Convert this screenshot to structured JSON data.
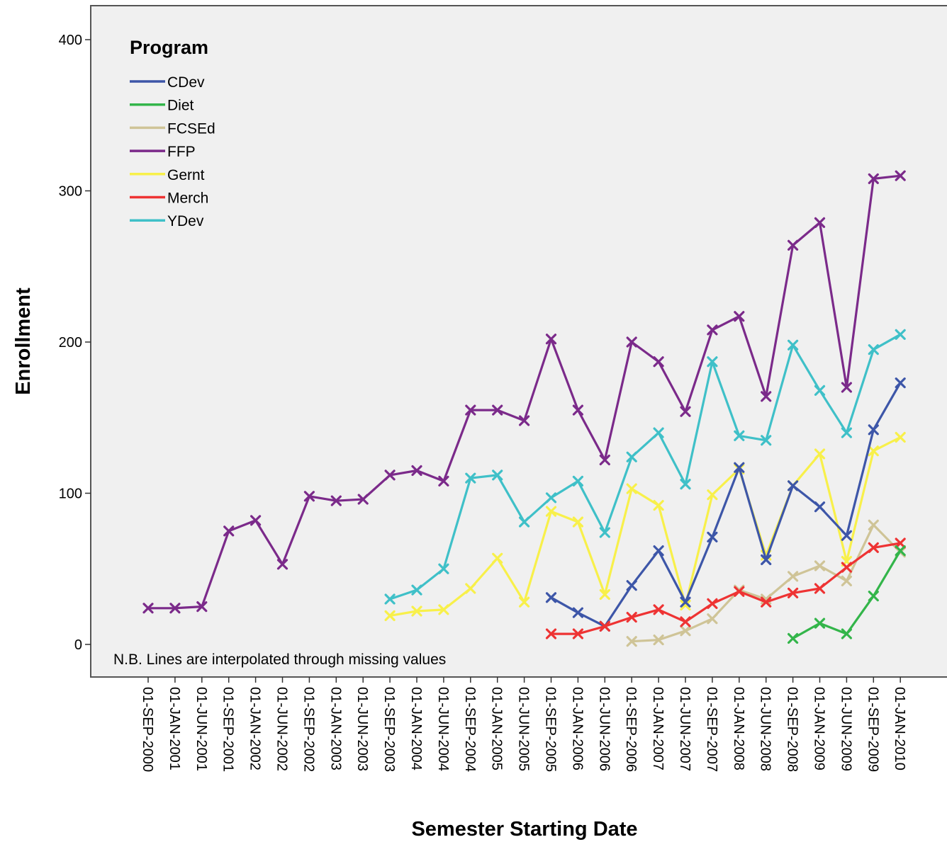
{
  "chart_data": {
    "type": "line",
    "title": "",
    "xlabel": "Semester Starting Date",
    "ylabel": "Enrollment",
    "ylim": [
      -20,
      425
    ],
    "yticks": [
      0,
      100,
      200,
      300,
      400
    ],
    "grid": false,
    "legend_title": "Program",
    "legend_position": "top-left",
    "note": "N.B. Lines are interpolated through missing values",
    "marker": "x",
    "categories": [
      "01-SEP-2000",
      "01-JAN-2001",
      "01-JUN-2001",
      "01-SEP-2001",
      "01-JAN-2002",
      "01-JUN-2002",
      "01-SEP-2002",
      "01-JAN-2003",
      "01-JUN-2003",
      "01-SEP-2003",
      "01-JAN-2004",
      "01-JUN-2004",
      "01-SEP-2004",
      "01-JAN-2005",
      "01-JUN-2005",
      "01-SEP-2005",
      "01-JAN-2006",
      "01-JUN-2006",
      "01-SEP-2006",
      "01-JAN-2007",
      "01-JUN-2007",
      "01-SEP-2007",
      "01-JAN-2008",
      "01-JUN-2008",
      "01-SEP-2008",
      "01-JAN-2009",
      "01-JUN-2009",
      "01-SEP-2009",
      "01-JAN-2010"
    ],
    "series": [
      {
        "name": "FFP",
        "color": "#7b2a8a",
        "values": [
          24,
          24,
          25,
          75,
          82,
          53,
          98,
          95,
          96,
          112,
          115,
          108,
          155,
          155,
          148,
          202,
          155,
          122,
          200,
          187,
          154,
          208,
          217,
          164,
          264,
          279,
          170,
          308,
          310
        ]
      },
      {
        "name": "YDev",
        "color": "#3fc0c8",
        "values": [
          null,
          null,
          null,
          null,
          null,
          null,
          null,
          null,
          null,
          30,
          36,
          50,
          110,
          112,
          81,
          97,
          108,
          74,
          124,
          140,
          106,
          187,
          138,
          135,
          198,
          168,
          140,
          195,
          205
        ]
      },
      {
        "name": "Gernt",
        "color": "#f8f04a",
        "values": [
          null,
          null,
          null,
          null,
          null,
          null,
          null,
          null,
          null,
          19,
          22,
          23,
          37,
          57,
          28,
          88,
          81,
          33,
          103,
          92,
          26,
          99,
          116,
          59,
          105,
          126,
          55,
          128,
          137
        ]
      },
      {
        "name": "CDev",
        "color": "#3d56a8",
        "values": [
          null,
          null,
          null,
          null,
          null,
          null,
          null,
          null,
          null,
          null,
          null,
          null,
          null,
          null,
          null,
          31,
          21,
          12,
          39,
          62,
          28,
          71,
          117,
          56,
          105,
          91,
          72,
          142,
          173
        ]
      },
      {
        "name": "FCSEd",
        "color": "#cfc497",
        "values": [
          null,
          null,
          null,
          null,
          null,
          null,
          null,
          null,
          null,
          null,
          null,
          null,
          null,
          null,
          null,
          null,
          null,
          null,
          2,
          3,
          9,
          17,
          36,
          30,
          45,
          52,
          42,
          79,
          61
        ]
      },
      {
        "name": "Merch",
        "color": "#ee3333",
        "values": [
          null,
          null,
          null,
          null,
          null,
          null,
          null,
          null,
          null,
          null,
          null,
          null,
          null,
          null,
          null,
          7,
          7,
          12,
          18,
          23,
          15,
          27,
          35,
          28,
          34,
          37,
          51,
          64,
          67
        ]
      },
      {
        "name": "Diet",
        "color": "#33b54a",
        "values": [
          null,
          null,
          null,
          null,
          null,
          null,
          null,
          null,
          null,
          null,
          null,
          null,
          null,
          null,
          null,
          null,
          null,
          null,
          null,
          null,
          null,
          null,
          null,
          null,
          4,
          14,
          7,
          32,
          62
        ]
      }
    ],
    "legend_order": [
      "CDev",
      "Diet",
      "FCSEd",
      "FFP",
      "Gernt",
      "Merch",
      "YDev"
    ]
  }
}
